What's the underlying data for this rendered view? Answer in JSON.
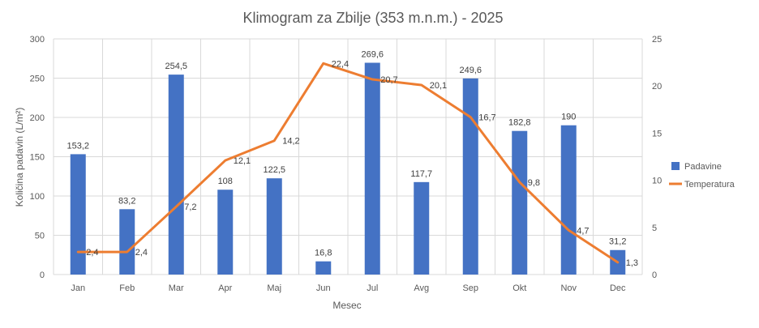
{
  "colors": {
    "bar": "#4472C4",
    "line": "#ED7D31",
    "grid": "#D9D9D9",
    "text": "#595959"
  },
  "chart_data": {
    "type": "bar+line",
    "title": "Klimogram za Zbilje (353 m.n.m.) - 2025",
    "xlabel": "Mesec",
    "ylabel": "Količina padavin (L/m²)",
    "y2label": "",
    "categories": [
      "Jan",
      "Feb",
      "Mar",
      "Apr",
      "Maj",
      "Jun",
      "Jul",
      "Avg",
      "Sep",
      "Okt",
      "Nov",
      "Dec"
    ],
    "ylim": [
      0,
      300
    ],
    "yticks": [
      0,
      50,
      100,
      150,
      200,
      250,
      300
    ],
    "y2lim": [
      0,
      25
    ],
    "y2ticks": [
      0,
      5,
      10,
      15,
      20,
      25
    ],
    "grid": true,
    "legend_position": "right",
    "series": [
      {
        "name": "Padavine",
        "type": "bar",
        "axis": "left",
        "values": [
          153.2,
          83.2,
          254.5,
          108,
          122.5,
          16.8,
          269.6,
          117.7,
          249.6,
          182.8,
          190,
          31.2
        ],
        "labels": [
          "153,2",
          "83,2",
          "254,5",
          "108",
          "122,5",
          "16,8",
          "269,6",
          "117,7",
          "249,6",
          "182,8",
          "190",
          "31,2"
        ]
      },
      {
        "name": "Temperatura",
        "type": "line",
        "axis": "right",
        "values": [
          2.4,
          2.4,
          7.2,
          12.1,
          14.2,
          22.4,
          20.7,
          20.1,
          16.7,
          9.8,
          4.7,
          1.3
        ],
        "labels": [
          "2,4",
          "2,4",
          "7,2",
          "12,1",
          "14,2",
          "22,4",
          "20,7",
          "20,1",
          "16,7",
          "9,8",
          "4,7",
          "1,3"
        ]
      }
    ]
  }
}
